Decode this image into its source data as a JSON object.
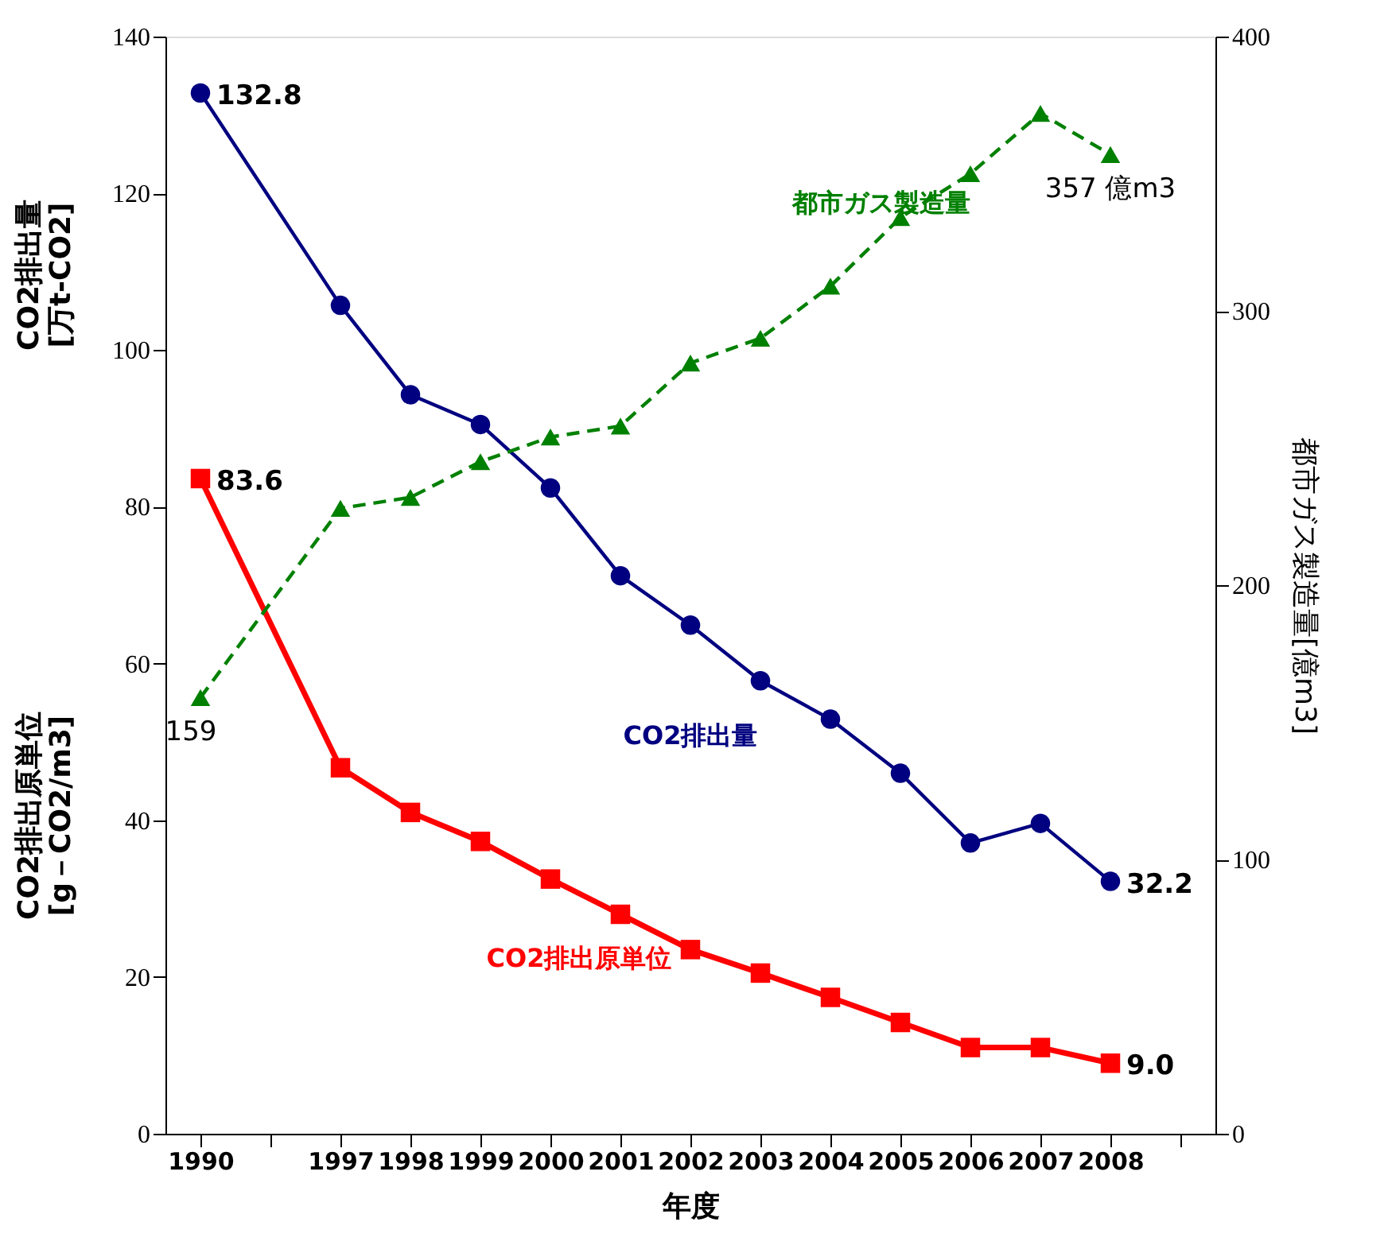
{
  "chart_data": {
    "type": "line",
    "xlabel": "年度",
    "ylabel": "CO2排出量\n[万t-CO2]",
    "y2label": "都市ガス製造量[億m3]",
    "annotations": [
      "CO2排出原単位\n[g－CO2/m3]"
    ],
    "categories": [
      "1990",
      null,
      "1997",
      "1998",
      "1999",
      "2000",
      "2001",
      "2002",
      "2003",
      "2004",
      "2005",
      "2006",
      "2007",
      "2008",
      null
    ],
    "ylim": [
      0,
      140
    ],
    "yticks": [
      0,
      20,
      40,
      60,
      80,
      100,
      120,
      140
    ],
    "y2lim": [
      0,
      400
    ],
    "y2ticks": [
      0,
      100,
      200,
      300,
      400
    ],
    "grid": false,
    "series": [
      {
        "name": "CO2排出量",
        "color": "#000080",
        "marker": "circle",
        "line_style": "solid",
        "values": [
          132.8,
          null,
          105.7,
          94.3,
          90.5,
          82.4,
          71.2,
          64.9,
          57.8,
          52.9,
          46.0,
          37.1,
          39.6,
          32.2,
          null
        ],
        "value_labels": [
          "132.8",
          null,
          null,
          null,
          null,
          null,
          null,
          null,
          null,
          null,
          null,
          null,
          null,
          "32.2",
          null
        ]
      },
      {
        "name": "CO2排出原単位",
        "color": "#ff0000",
        "marker": "square",
        "line_style": "solid",
        "values": [
          83.6,
          null,
          46.7,
          41.0,
          37.3,
          32.5,
          28.0,
          23.5,
          20.5,
          17.4,
          14.2,
          11.0,
          11.0,
          9.0,
          null
        ],
        "value_labels": [
          "83.6",
          null,
          null,
          null,
          null,
          null,
          null,
          null,
          null,
          null,
          null,
          null,
          null,
          "9.0",
          null
        ]
      },
      {
        "name": "都市ガス製造量",
        "color": "#008000",
        "marker": "triangle",
        "line_style": "dashed",
        "axis": "y2",
        "values": [
          159,
          null,
          228,
          232,
          245,
          254,
          258,
          281,
          290,
          309,
          334,
          350,
          372,
          357,
          null
        ],
        "value_labels": [
          "159",
          null,
          null,
          null,
          null,
          null,
          null,
          null,
          null,
          null,
          null,
          null,
          null,
          "357 億m3",
          null
        ]
      }
    ]
  }
}
